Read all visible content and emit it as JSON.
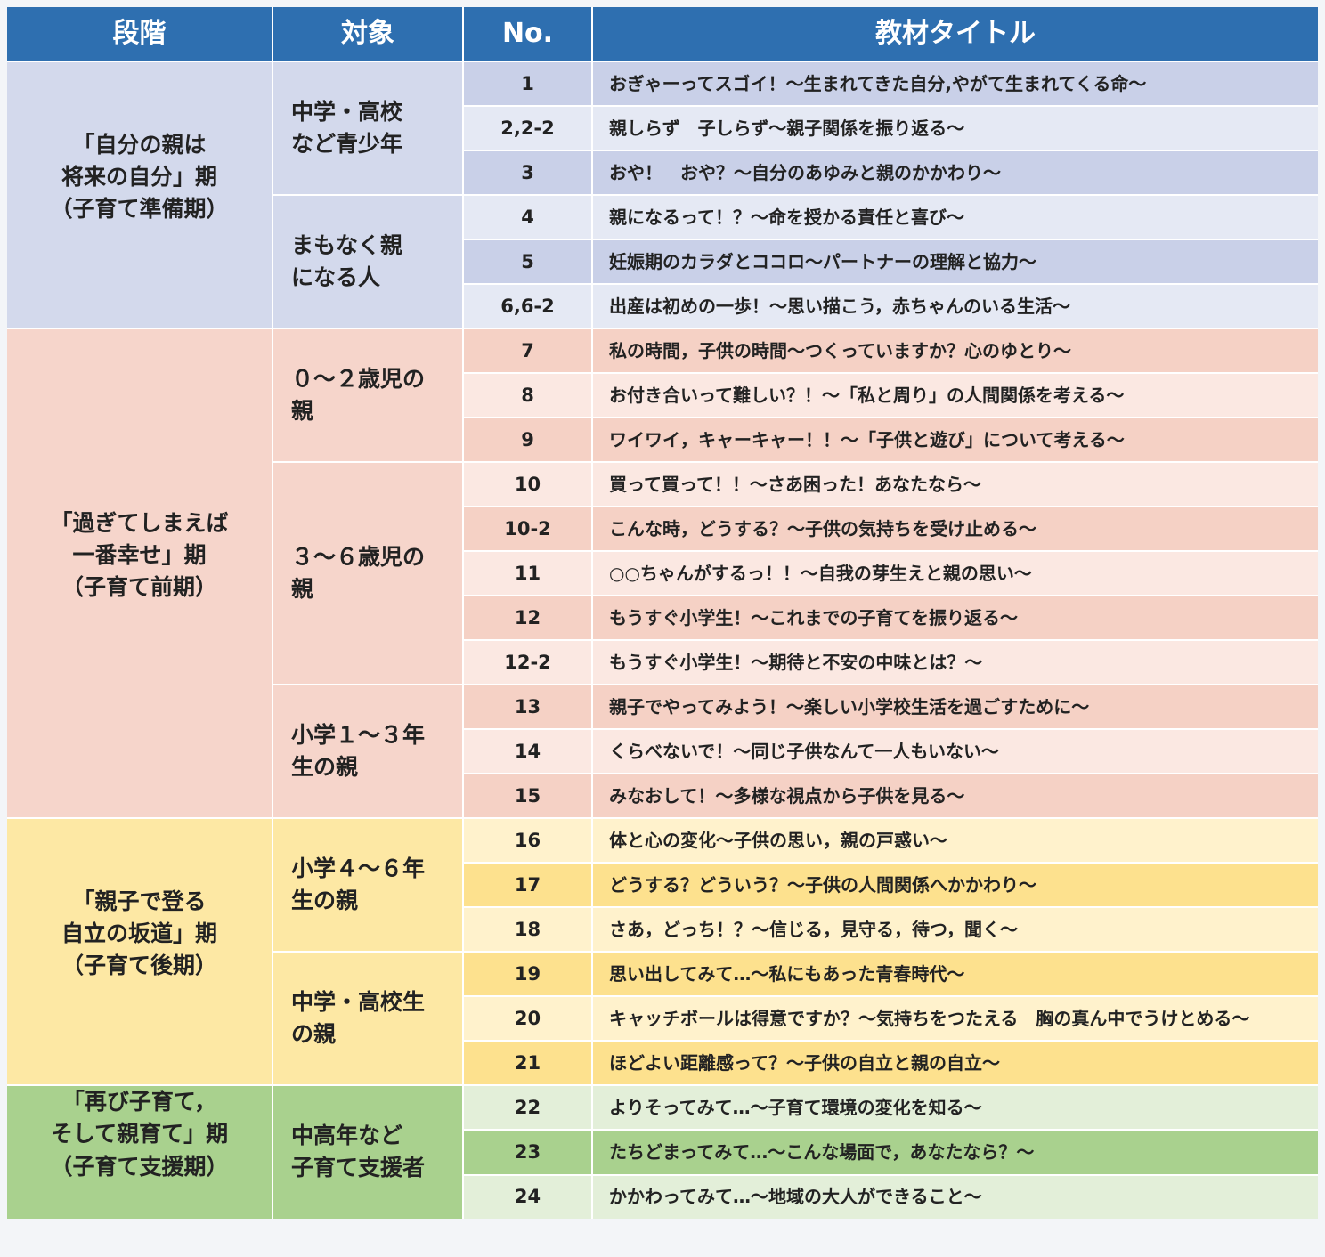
{
  "header": [
    "段階",
    "対象",
    "No.",
    "教材タイトル"
  ],
  "stages": [
    {
      "label": "「自分の親は\n将来の自分」期\n（子育て準備期）",
      "groups": [
        {
          "target": "中学・高校\nなど青少年",
          "items": [
            {
              "no": "1",
              "title": "おぎゃーってスゴイ！〜生まれてきた自分,やがて生まれてくる命〜"
            },
            {
              "no": "2,2-2",
              "title": "親しらず　子しらず〜親子関係を振り返る〜"
            },
            {
              "no": "3",
              "title": "おや！　おや？〜自分のあゆみと親のかかわり〜"
            }
          ]
        },
        {
          "target": "まもなく親\nになる人",
          "items": [
            {
              "no": "4",
              "title": "親になるって！？〜命を授かる責任と喜び〜"
            },
            {
              "no": "5",
              "title": "妊娠期のカラダとココロ〜パートナーの理解と協力〜"
            },
            {
              "no": "6,6-2",
              "title": "出産は初めの一歩！〜思い描こう，赤ちゃんのいる生活〜"
            }
          ]
        }
      ]
    },
    {
      "label": "「過ぎてしまえば\n一番幸せ」期\n（子育て前期）",
      "groups": [
        {
          "target": "０〜２歳児の\n親",
          "items": [
            {
              "no": "7",
              "title": "私の時間，子供の時間〜つくっていますか？心のゆとり〜"
            },
            {
              "no": "8",
              "title": "お付き合いって難しい？！〜「私と周り」の人間関係を考える〜"
            },
            {
              "no": "9",
              "title": "ワイワイ，キャーキャー！！〜「子供と遊び」について考える〜"
            }
          ]
        },
        {
          "target": "３〜６歳児の\n親",
          "items": [
            {
              "no": "10",
              "title": "買って買って！！〜さあ困った！あなたなら〜"
            },
            {
              "no": "10-2",
              "title": "こんな時，どうする？〜子供の気持ちを受け止める〜"
            },
            {
              "no": "11",
              "title": "○○ちゃんがするっ！！〜自我の芽生えと親の思い〜"
            },
            {
              "no": "12",
              "title": "もうすぐ小学生！〜これまでの子育てを振り返る〜"
            },
            {
              "no": "12-2",
              "title": "もうすぐ小学生！〜期待と不安の中味とは？〜"
            }
          ]
        },
        {
          "target": "小学１〜３年\n生の親",
          "items": [
            {
              "no": "13",
              "title": "親子でやってみよう！〜楽しい小学校生活を過ごすために〜"
            },
            {
              "no": "14",
              "title": "くらべないで！〜同じ子供なんて一人もいない〜"
            },
            {
              "no": "15",
              "title": "みなおして！〜多様な視点から子供を見る〜"
            }
          ]
        }
      ]
    },
    {
      "label": "「親子で登る\n自立の坂道」期\n（子育て後期）",
      "groups": [
        {
          "target": "小学４〜６年\n生の親",
          "items": [
            {
              "no": "16",
              "title": "体と心の変化〜子供の思い，親の戸惑い〜"
            },
            {
              "no": "17",
              "title": "どうする？どういう？〜子供の人間関係へかかわり〜"
            },
            {
              "no": "18",
              "title": "さあ，どっち！？〜信じる，見守る，待つ，聞く〜"
            }
          ]
        },
        {
          "target": "中学・高校生\nの親",
          "items": [
            {
              "no": "19",
              "title": "思い出してみて…〜私にもあった青春時代〜"
            },
            {
              "no": "20",
              "title": "キャッチボールは得意ですか？〜気持ちをつたえる　胸の真ん中でうけとめる〜"
            },
            {
              "no": "21",
              "title": "ほどよい距離感って？〜子供の自立と親の自立〜"
            }
          ]
        }
      ]
    },
    {
      "label": "「再び子育て，\nそして親育て」期\n（子育て支援期）",
      "groups": [
        {
          "target": "中高年など\n子育て支援者",
          "items": [
            {
              "no": "22",
              "title": "よりそってみて…〜子育て環境の変化を知る〜"
            },
            {
              "no": "23",
              "title": "たちどまってみて…〜こんな場面で，あなたなら？〜"
            },
            {
              "no": "24",
              "title": "かかわってみて…〜地域の大人ができること〜"
            }
          ]
        }
      ]
    }
  ]
}
